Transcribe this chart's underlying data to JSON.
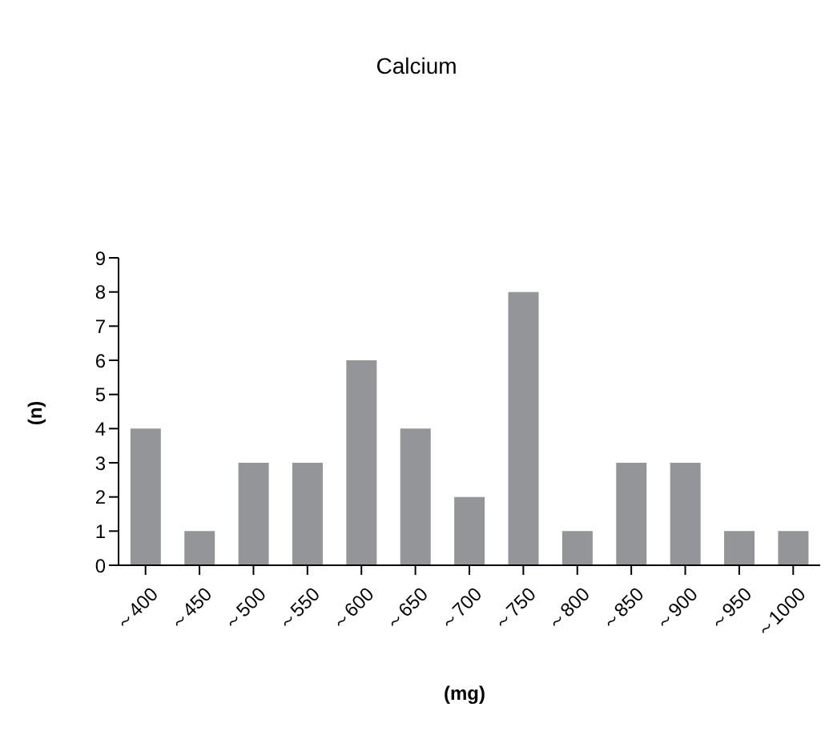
{
  "chart_data": {
    "type": "bar",
    "title": "Calcium",
    "xlabel": "(mg)",
    "ylabel": "(n)",
    "categories": [
      "～400",
      "～450",
      "～500",
      "～550",
      "～600",
      "～650",
      "～700",
      "～750",
      "～800",
      "～850",
      "～900",
      "～950",
      "～1000"
    ],
    "values": [
      4,
      1,
      3,
      3,
      6,
      4,
      2,
      8,
      1,
      3,
      3,
      1,
      1
    ],
    "color": "#939598",
    "ylim": [
      0,
      9
    ],
    "yticks": [
      0,
      1,
      2,
      3,
      4,
      5,
      6,
      7,
      8,
      9
    ],
    "grid": false,
    "legend": false
  }
}
